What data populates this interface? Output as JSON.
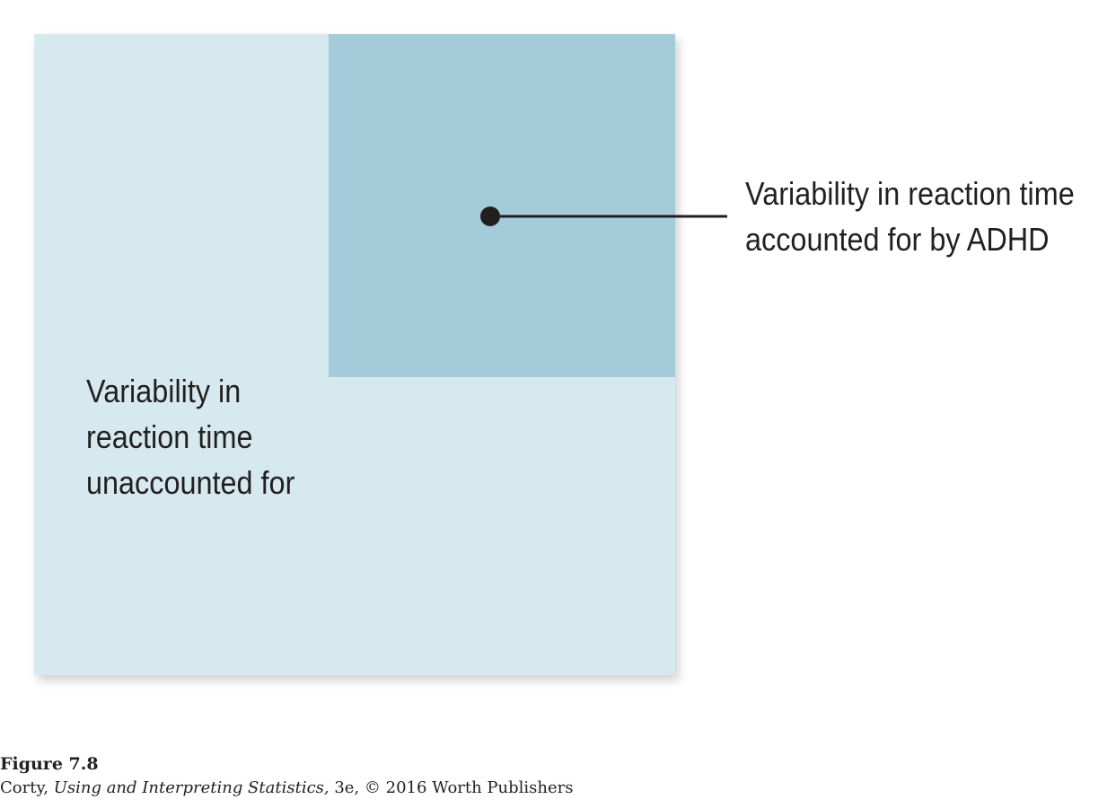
{
  "diagram": {
    "unaccounted_label_lines": [
      "Variability in",
      "reaction time",
      "unaccounted for"
    ],
    "accounted_label_lines": [
      "Variability in reaction time",
      "accounted for by ADHD"
    ],
    "colors": {
      "outer_square": "#d6e9ee",
      "inner_square": "#a3cbda",
      "connector": "#231f20"
    }
  },
  "caption": {
    "figure_number": "Figure 7.8",
    "author": "Corty,",
    "book_title": "Using and Interpreting Statistics,",
    "edition_and_copyright": "3e, © 2016 Worth Publishers"
  }
}
